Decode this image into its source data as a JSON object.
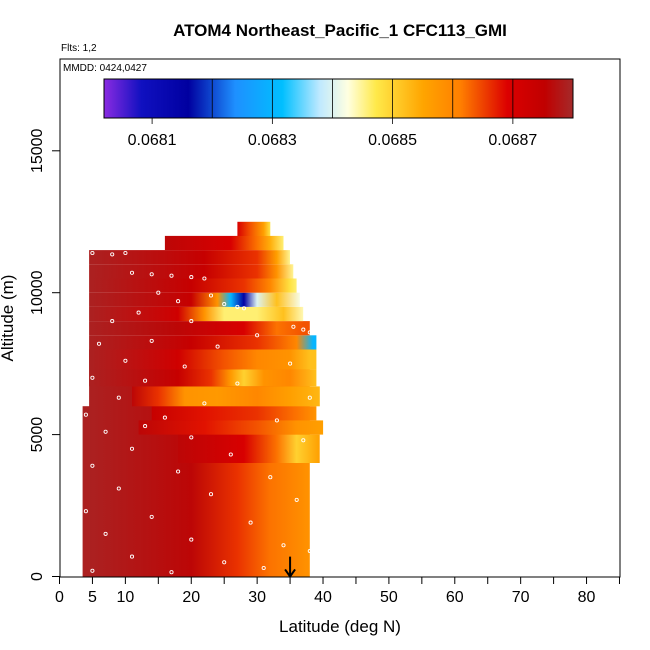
{
  "chart_data": {
    "type": "heatmap",
    "title": "ATOM4 Northeast_Pacific_1 CFC113_GMI",
    "subtitle_flights": "Flts: 1,2",
    "subtitle_dates": "MMDD: 0424,0427",
    "xlabel": "Latitude (deg N)",
    "ylabel": "Altitude (m)",
    "xlim": [
      0,
      85
    ],
    "ylim": [
      0,
      17500
    ],
    "x_ticks": [
      0,
      5,
      10,
      20,
      30,
      40,
      50,
      60,
      70,
      80
    ],
    "x_minor_ticks": [
      15,
      25,
      35,
      45,
      55,
      65,
      75,
      85
    ],
    "y_ticks": [
      0,
      5000,
      10000,
      15000
    ],
    "colorbar": {
      "min": 0.06802,
      "max": 0.0688,
      "ticks": [
        0.0681,
        0.0683,
        0.0685,
        0.0687
      ],
      "tick_labels": [
        "0.0681",
        "0.0683",
        "0.0685",
        "0.0687"
      ],
      "grid_lines": [
        0.0682,
        0.0683,
        0.0684,
        0.0685,
        0.0686,
        0.0687
      ],
      "stops": [
        [
          0.0,
          "#8a2be2"
        ],
        [
          0.08,
          "#1010c0"
        ],
        [
          0.18,
          "#0000a0"
        ],
        [
          0.28,
          "#1e90ff"
        ],
        [
          0.38,
          "#00bfff"
        ],
        [
          0.46,
          "#bfe9ff"
        ],
        [
          0.52,
          "#ffffe0"
        ],
        [
          0.58,
          "#ffe94a"
        ],
        [
          0.68,
          "#ffa500"
        ],
        [
          0.76,
          "#ff7f00"
        ],
        [
          0.86,
          "#dc0000"
        ],
        [
          0.94,
          "#c00000"
        ],
        [
          1.0,
          "#a52a2a"
        ]
      ]
    },
    "arrow_marker_latitude": 35,
    "bands": [
      {
        "alt": [
          0,
          6000
        ],
        "lat": [
          3.5,
          37.8
        ],
        "values": [
          [
            3.5,
            0.06879
          ],
          [
            24,
            0.06876
          ],
          [
            30,
            0.06872
          ],
          [
            33,
            0.06866
          ],
          [
            36,
            0.0686
          ],
          [
            37.8,
            0.06862
          ]
        ]
      },
      {
        "alt": [
          0,
          8000
        ],
        "lat": [
          4.5,
          38
        ],
        "values": [
          [
            4.5,
            0.06879
          ],
          [
            20,
            0.06876
          ],
          [
            27,
            0.06866
          ],
          [
            32,
            0.06862
          ],
          [
            38,
            0.06858
          ]
        ]
      },
      {
        "alt": [
          4000,
          5000
        ],
        "lat": [
          18,
          39.5
        ],
        "values": [
          [
            18,
            0.06876
          ],
          [
            28,
            0.0687
          ],
          [
            33,
            0.06862
          ],
          [
            36,
            0.0685
          ],
          [
            39.5,
            0.06856
          ]
        ]
      },
      {
        "alt": [
          5000,
          5500
        ],
        "lat": [
          12,
          40
        ],
        "values": [
          [
            12,
            0.06876
          ],
          [
            22,
            0.06868
          ],
          [
            30,
            0.06864
          ],
          [
            36,
            0.06858
          ],
          [
            40,
            0.06856
          ]
        ]
      },
      {
        "alt": [
          5500,
          6000
        ],
        "lat": [
          14,
          39
        ],
        "values": [
          [
            14,
            0.06874
          ],
          [
            22,
            0.06868
          ],
          [
            30,
            0.06866
          ],
          [
            36,
            0.06862
          ],
          [
            39,
            0.06858
          ]
        ]
      },
      {
        "alt": [
          6000,
          6700
        ],
        "lat": [
          11,
          39.5
        ],
        "values": [
          [
            11,
            0.06876
          ],
          [
            15,
            0.06866
          ],
          [
            19,
            0.06858
          ],
          [
            24,
            0.06857
          ],
          [
            30,
            0.0686
          ],
          [
            35,
            0.06856
          ],
          [
            39.5,
            0.06853
          ]
        ]
      },
      {
        "alt": [
          6700,
          7300
        ],
        "lat": [
          4.5,
          39
        ],
        "values": [
          [
            4.5,
            0.06879
          ],
          [
            18,
            0.06874
          ],
          [
            23,
            0.06866
          ],
          [
            26,
            0.06857
          ],
          [
            28,
            0.0685
          ],
          [
            31,
            0.06858
          ],
          [
            35,
            0.0686
          ],
          [
            39,
            0.06852
          ]
        ]
      },
      {
        "alt": [
          7300,
          8000
        ],
        "lat": [
          4.5,
          39
        ],
        "values": [
          [
            4.5,
            0.06879
          ],
          [
            18,
            0.06872
          ],
          [
            25,
            0.06864
          ],
          [
            30,
            0.0686
          ],
          [
            35,
            0.06858
          ],
          [
            38,
            0.06852
          ]
        ]
      },
      {
        "alt": [
          8000,
          8500
        ],
        "lat": [
          4.5,
          39
        ],
        "values": [
          [
            4.5,
            0.06879
          ],
          [
            20,
            0.06874
          ],
          [
            30,
            0.06866
          ],
          [
            36,
            0.0686
          ],
          [
            38.5,
            0.0683
          ]
        ]
      },
      {
        "alt": [
          8500,
          9000
        ],
        "lat": [
          4.5,
          38
        ],
        "values": [
          [
            4.5,
            0.06879
          ],
          [
            18,
            0.06876
          ],
          [
            28,
            0.0687
          ],
          [
            33,
            0.06862
          ],
          [
            37,
            0.06864
          ]
        ]
      },
      {
        "alt": [
          9000,
          9500
        ],
        "lat": [
          4.5,
          37
        ],
        "values": [
          [
            4.5,
            0.06879
          ],
          [
            18,
            0.06872
          ],
          [
            22,
            0.06858
          ],
          [
            25,
            0.06846
          ],
          [
            30,
            0.06846
          ],
          [
            34,
            0.06852
          ],
          [
            37,
            0.06844
          ]
        ]
      },
      {
        "alt": [
          9500,
          10000
        ],
        "lat": [
          4.5,
          36.5
        ],
        "values": [
          [
            4.5,
            0.06879
          ],
          [
            20,
            0.06874
          ],
          [
            24,
            0.06858
          ],
          [
            26,
            0.0683
          ],
          [
            28,
            0.06815
          ],
          [
            30,
            0.0684
          ],
          [
            33,
            0.06852
          ],
          [
            36.5,
            0.06842
          ]
        ]
      },
      {
        "alt": [
          10000,
          10500
        ],
        "lat": [
          4.5,
          36
        ],
        "values": [
          [
            4.5,
            0.06879
          ],
          [
            20,
            0.06874
          ],
          [
            28,
            0.06866
          ],
          [
            32,
            0.0686
          ],
          [
            35,
            0.06848
          ],
          [
            36,
            0.06846
          ]
        ]
      },
      {
        "alt": [
          10500,
          11000
        ],
        "lat": [
          4.5,
          35.5
        ],
        "values": [
          [
            4.5,
            0.06879
          ],
          [
            22,
            0.06874
          ],
          [
            30,
            0.06866
          ],
          [
            33,
            0.06858
          ],
          [
            35.5,
            0.06845
          ]
        ]
      },
      {
        "alt": [
          11000,
          11500
        ],
        "lat": [
          4.5,
          35
        ],
        "values": [
          [
            4.5,
            0.06879
          ],
          [
            22,
            0.06874
          ],
          [
            30,
            0.06866
          ],
          [
            33,
            0.06856
          ],
          [
            35,
            0.06845
          ]
        ]
      },
      {
        "alt": [
          11500,
          12000
        ],
        "lat": [
          16,
          34
        ],
        "values": [
          [
            16,
            0.06876
          ],
          [
            26,
            0.0687
          ],
          [
            30,
            0.06862
          ],
          [
            32,
            0.06854
          ],
          [
            34,
            0.06846
          ]
        ]
      },
      {
        "alt": [
          12000,
          12500
        ],
        "lat": [
          27,
          32
        ],
        "values": [
          [
            27,
            0.0687
          ],
          [
            29,
            0.06864
          ],
          [
            31,
            0.06856
          ],
          [
            32,
            0.06848
          ]
        ]
      }
    ],
    "flight_track": [
      {
        "lat": 5,
        "alt": 11400
      },
      {
        "lat": 8,
        "alt": 11350
      },
      {
        "lat": 10,
        "alt": 11400
      },
      {
        "lat": 11,
        "alt": 10700
      },
      {
        "lat": 14,
        "alt": 10650
      },
      {
        "lat": 17,
        "alt": 10600
      },
      {
        "lat": 20,
        "alt": 10550
      },
      {
        "lat": 22,
        "alt": 10500
      },
      {
        "lat": 23,
        "alt": 9900
      },
      {
        "lat": 25,
        "alt": 9600
      },
      {
        "lat": 27,
        "alt": 9500
      },
      {
        "lat": 28,
        "alt": 9450
      },
      {
        "lat": 35.5,
        "alt": 8800
      },
      {
        "lat": 37,
        "alt": 8700
      },
      {
        "lat": 38,
        "alt": 8600
      },
      {
        "lat": 15,
        "alt": 10000
      },
      {
        "lat": 18,
        "alt": 9700
      },
      {
        "lat": 12,
        "alt": 9300
      },
      {
        "lat": 8,
        "alt": 9000
      },
      {
        "lat": 20,
        "alt": 9000
      },
      {
        "lat": 30,
        "alt": 8500
      },
      {
        "lat": 6,
        "alt": 8200
      },
      {
        "lat": 14,
        "alt": 8300
      },
      {
        "lat": 24,
        "alt": 8100
      },
      {
        "lat": 10,
        "alt": 7600
      },
      {
        "lat": 19,
        "alt": 7400
      },
      {
        "lat": 35,
        "alt": 7500
      },
      {
        "lat": 5,
        "alt": 7000
      },
      {
        "lat": 13,
        "alt": 6900
      },
      {
        "lat": 27,
        "alt": 6800
      },
      {
        "lat": 9,
        "alt": 6300
      },
      {
        "lat": 22,
        "alt": 6100
      },
      {
        "lat": 38,
        "alt": 6300
      },
      {
        "lat": 4,
        "alt": 5700
      },
      {
        "lat": 16,
        "alt": 5600
      },
      {
        "lat": 33,
        "alt": 5500
      },
      {
        "lat": 7,
        "alt": 5100
      },
      {
        "lat": 20,
        "alt": 4900
      },
      {
        "lat": 37,
        "alt": 4800
      },
      {
        "lat": 11,
        "alt": 4500
      },
      {
        "lat": 26,
        "alt": 4300
      },
      {
        "lat": 5,
        "alt": 3900
      },
      {
        "lat": 18,
        "alt": 3700
      },
      {
        "lat": 32,
        "alt": 3500
      },
      {
        "lat": 9,
        "alt": 3100
      },
      {
        "lat": 23,
        "alt": 2900
      },
      {
        "lat": 36,
        "alt": 2700
      },
      {
        "lat": 4,
        "alt": 2300
      },
      {
        "lat": 14,
        "alt": 2100
      },
      {
        "lat": 29,
        "alt": 1900
      },
      {
        "lat": 7,
        "alt": 1500
      },
      {
        "lat": 20,
        "alt": 1300
      },
      {
        "lat": 34,
        "alt": 1100
      },
      {
        "lat": 11,
        "alt": 700
      },
      {
        "lat": 25,
        "alt": 500
      },
      {
        "lat": 5,
        "alt": 200
      },
      {
        "lat": 17,
        "alt": 150
      },
      {
        "lat": 31,
        "alt": 300
      },
      {
        "lat": 38,
        "alt": 900
      },
      {
        "lat": 13,
        "alt": 5300
      }
    ]
  }
}
